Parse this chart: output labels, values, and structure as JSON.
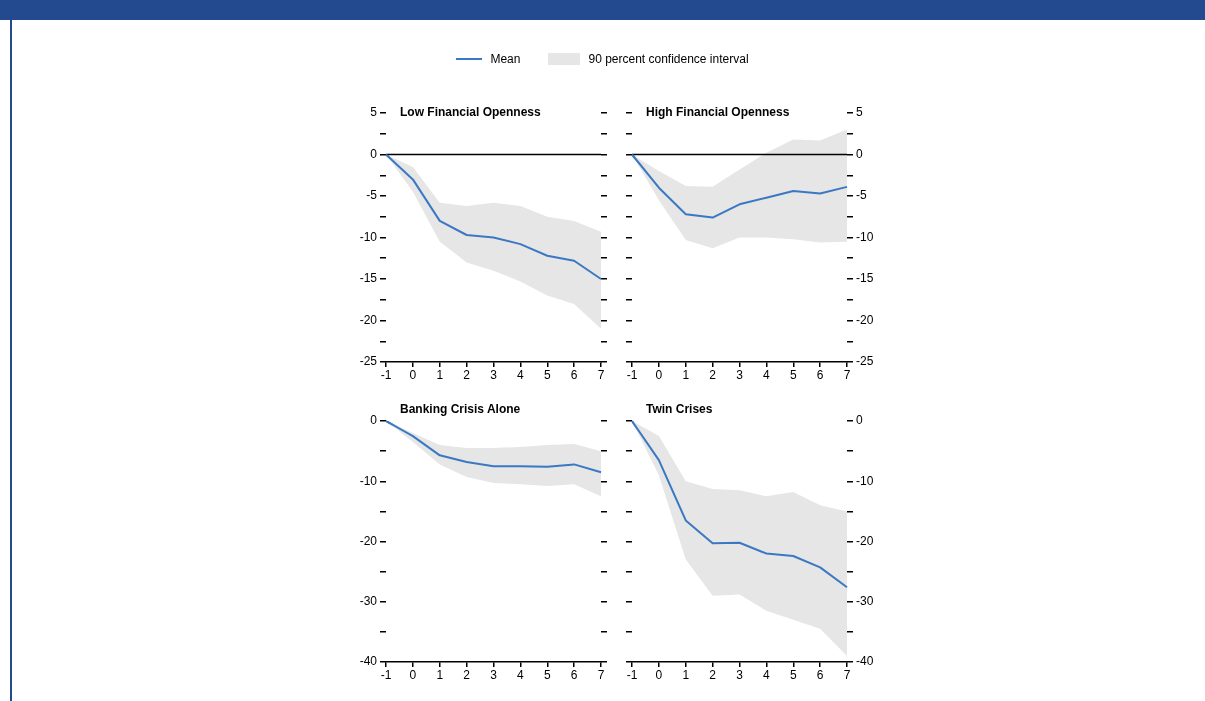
{
  "chart_data": [
    {
      "type": "line",
      "title": "Low Financial Openness",
      "legend": "top",
      "annotations": [
        "90 percent confidence interval"
      ],
      "xlim": [
        -1,
        7
      ],
      "xticks": [
        -1,
        0,
        1,
        2,
        3,
        4,
        5,
        6,
        7
      ],
      "ylim": [
        -25,
        5
      ],
      "yticks": [
        5,
        {
          "value": 2.5,
          "label": null
        },
        0,
        {
          "value": -2.5,
          "label": null
        },
        -5,
        {
          "value": -7.5,
          "label": null
        },
        -10,
        {
          "value": -12.5,
          "label": null
        },
        -15,
        {
          "value": -17.5,
          "label": null
        },
        -20,
        {
          "value": -22.5,
          "label": null
        },
        -25
      ],
      "ref_lines": [
        {
          "axis": "y",
          "value": 0,
          "color": "#000000"
        }
      ],
      "x": [
        -1,
        0,
        1,
        2,
        3,
        4,
        5,
        6,
        7
      ],
      "series": [
        {
          "name": "Mean",
          "color": "#3a78c3",
          "values": [
            0,
            -3,
            -8,
            -9.7,
            -10,
            -10.8,
            -12.2,
            -12.8,
            -15
          ],
          "lower": [
            0,
            -4.5,
            -10.5,
            -13,
            -14,
            -15.3,
            -17,
            -18,
            -21
          ],
          "upper": [
            0,
            -1.5,
            -5.8,
            -6.2,
            -5.8,
            -6.2,
            -7.5,
            -8,
            -9.3
          ]
        }
      ]
    },
    {
      "type": "line",
      "title": "High Financial Openness",
      "xlim": [
        -1,
        7
      ],
      "xticks": [
        -1,
        0,
        1,
        2,
        3,
        4,
        5,
        6,
        7
      ],
      "ylim": [
        -25,
        5
      ],
      "yticks": [
        5,
        {
          "value": 2.5,
          "label": null
        },
        0,
        {
          "value": -2.5,
          "label": null
        },
        -5,
        {
          "value": -7.5,
          "label": null
        },
        -10,
        {
          "value": -12.5,
          "label": null
        },
        -15,
        {
          "value": -17.5,
          "label": null
        },
        -20,
        {
          "value": -22.5,
          "label": null
        },
        -25
      ],
      "ref_lines": [
        {
          "axis": "y",
          "value": 0,
          "color": "#000000"
        }
      ],
      "x": [
        -1,
        0,
        1,
        2,
        3,
        4,
        5,
        6,
        7
      ],
      "series": [
        {
          "color": "#3a78c3",
          "values": [
            0,
            -4,
            -7.2,
            -7.6,
            -6,
            -5.2,
            -4.4,
            -4.7,
            -3.9
          ],
          "lower": [
            0,
            -5.5,
            -10.3,
            -11.3,
            -10,
            -10,
            -10.2,
            -10.6,
            -10.5
          ],
          "upper": [
            0,
            -2,
            -3.8,
            -3.9,
            -1.8,
            0.2,
            1.8,
            1.7,
            3
          ]
        }
      ]
    },
    {
      "type": "line",
      "title": "Banking Crisis Alone",
      "xlim": [
        -1,
        7
      ],
      "xticks": [
        -1,
        0,
        1,
        2,
        3,
        4,
        5,
        6,
        7
      ],
      "ylim": [
        -40,
        0
      ],
      "yticks": [
        0,
        {
          "value": -5,
          "label": null
        },
        -10,
        {
          "value": -15,
          "label": null
        },
        -20,
        {
          "value": -25,
          "label": null
        },
        -30,
        {
          "value": -35,
          "label": null
        },
        -40
      ],
      "x": [
        -1,
        0,
        1,
        2,
        3,
        4,
        5,
        6,
        7
      ],
      "series": [
        {
          "color": "#3a78c3",
          "values": [
            0,
            -2.5,
            -5.7,
            -6.8,
            -7.5,
            -7.5,
            -7.6,
            -7.2,
            -8.5
          ],
          "lower": [
            0,
            -3.5,
            -7.2,
            -9.3,
            -10.3,
            -10.5,
            -10.8,
            -10.5,
            -12.5
          ],
          "upper": [
            0,
            -2,
            -4,
            -4.5,
            -4.5,
            -4.3,
            -4,
            -3.8,
            -5
          ]
        }
      ]
    },
    {
      "type": "line",
      "title": "Twin Crises",
      "xlim": [
        -1,
        7
      ],
      "xticks": [
        -1,
        0,
        1,
        2,
        3,
        4,
        5,
        6,
        7
      ],
      "ylim": [
        -40,
        0
      ],
      "yticks": [
        0,
        {
          "value": -5,
          "label": null
        },
        -10,
        {
          "value": -15,
          "label": null
        },
        -20,
        {
          "value": -25,
          "label": null
        },
        -30,
        {
          "value": -35,
          "label": null
        },
        -40
      ],
      "x": [
        -1,
        0,
        1,
        2,
        3,
        4,
        5,
        6,
        7
      ],
      "series": [
        {
          "color": "#3a78c3",
          "values": [
            0,
            -6.5,
            -16.5,
            -20.3,
            -20.2,
            -22,
            -22.4,
            -24.3,
            -27.6
          ],
          "lower": [
            0,
            -9,
            -23,
            -29,
            -28.8,
            -31.5,
            -33,
            -34.5,
            -39
          ],
          "upper": [
            0,
            -2.5,
            -10,
            -11.3,
            -11.5,
            -12.5,
            -11.8,
            -14,
            -15
          ]
        }
      ]
    }
  ]
}
